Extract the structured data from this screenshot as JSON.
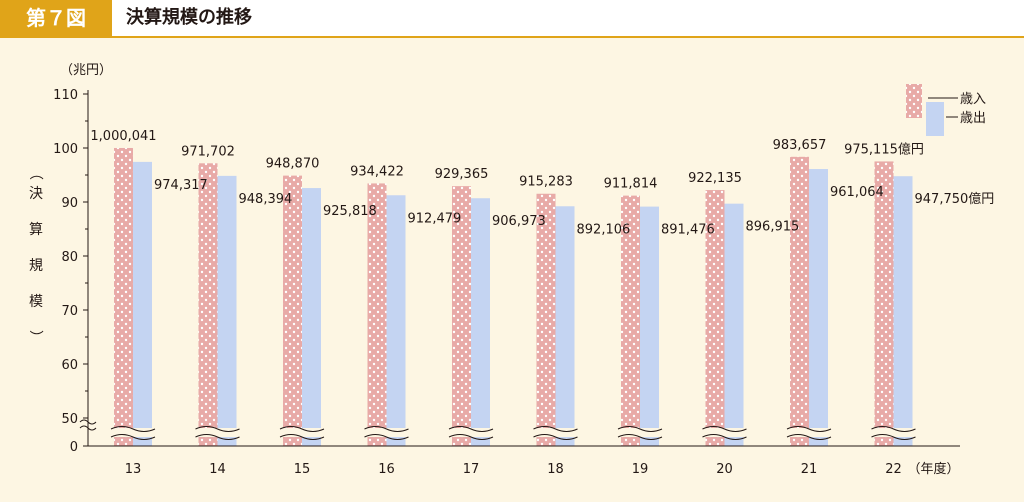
{
  "header": {
    "figure_label": "第７図",
    "title": "決算規模の推移"
  },
  "colors": {
    "revenue": "#e8aaa7",
    "expenditure": "#c4d4f2",
    "accent": "#e0a419",
    "background": "#fdf6e3"
  },
  "chart_data": {
    "type": "bar",
    "title": "",
    "unit_label": "（兆円）",
    "ylabel": "（決算規模）",
    "xlabel_suffix": "（年度）",
    "categories": [
      "13",
      "14",
      "15",
      "16",
      "17",
      "18",
      "19",
      "20",
      "21",
      "22"
    ],
    "yticks": [
      0,
      50,
      60,
      70,
      80,
      90,
      100,
      110
    ],
    "ylim": [
      45,
      110
    ],
    "axis_break": true,
    "legend": {
      "position": "top-right",
      "entries": [
        "歳入",
        "歳出"
      ]
    },
    "series": [
      {
        "name": "歳入",
        "values": [
          100.0041,
          97.1702,
          94.887,
          93.4422,
          92.9365,
          91.5283,
          91.1814,
          92.2135,
          98.3657,
          97.5115
        ],
        "labels": [
          "1,000,041",
          "971,702",
          "948,870",
          "934,422",
          "929,365",
          "915,283",
          "911,814",
          "922,135",
          "983,657",
          "975,115億円"
        ]
      },
      {
        "name": "歳出",
        "values": [
          97.4317,
          94.8394,
          92.5818,
          91.2479,
          90.6973,
          89.2106,
          89.1476,
          89.6915,
          96.1064,
          94.775
        ],
        "labels": [
          "974,317",
          "948,394",
          "925,818",
          "912,479",
          "906,973",
          "892,106",
          "891,476",
          "896,915",
          "961,064",
          "947,750億円"
        ]
      }
    ]
  }
}
